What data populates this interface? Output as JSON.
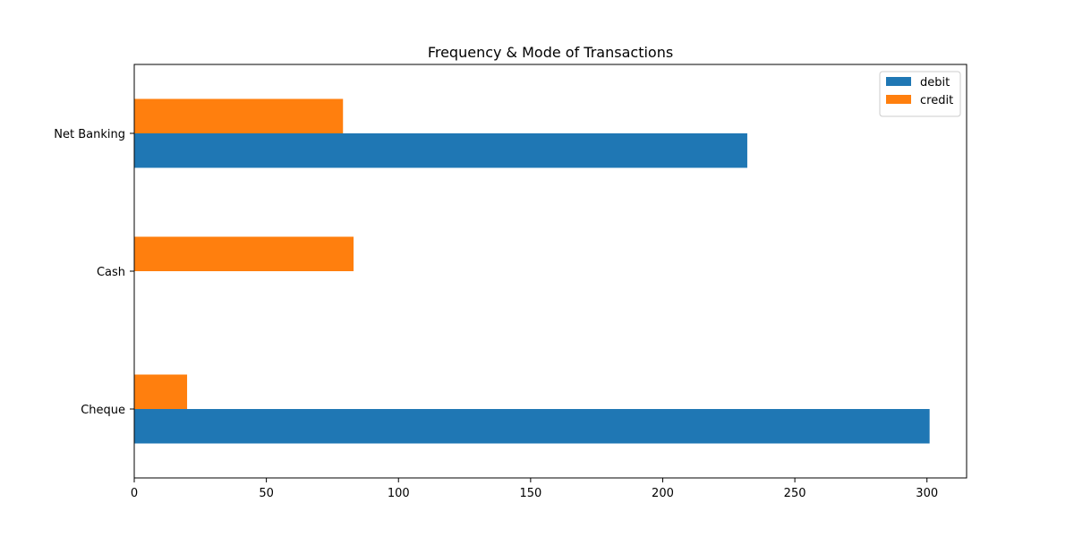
{
  "chart_data": {
    "type": "bar",
    "orientation": "horizontal",
    "title": "Frequency & Mode of Transactions",
    "xlabel": "",
    "ylabel": "",
    "categories": [
      "Cheque",
      "Cash",
      "Net Banking"
    ],
    "series": [
      {
        "name": "debit",
        "color": "#1f77b4",
        "values": [
          301,
          0,
          232
        ]
      },
      {
        "name": "credit",
        "color": "#ff7f0e",
        "values": [
          20,
          83,
          79
        ]
      }
    ],
    "xlim": [
      0,
      315
    ],
    "xticks": [
      0,
      50,
      100,
      150,
      200,
      250,
      300
    ],
    "grid": false,
    "legend_position": "top-right"
  }
}
